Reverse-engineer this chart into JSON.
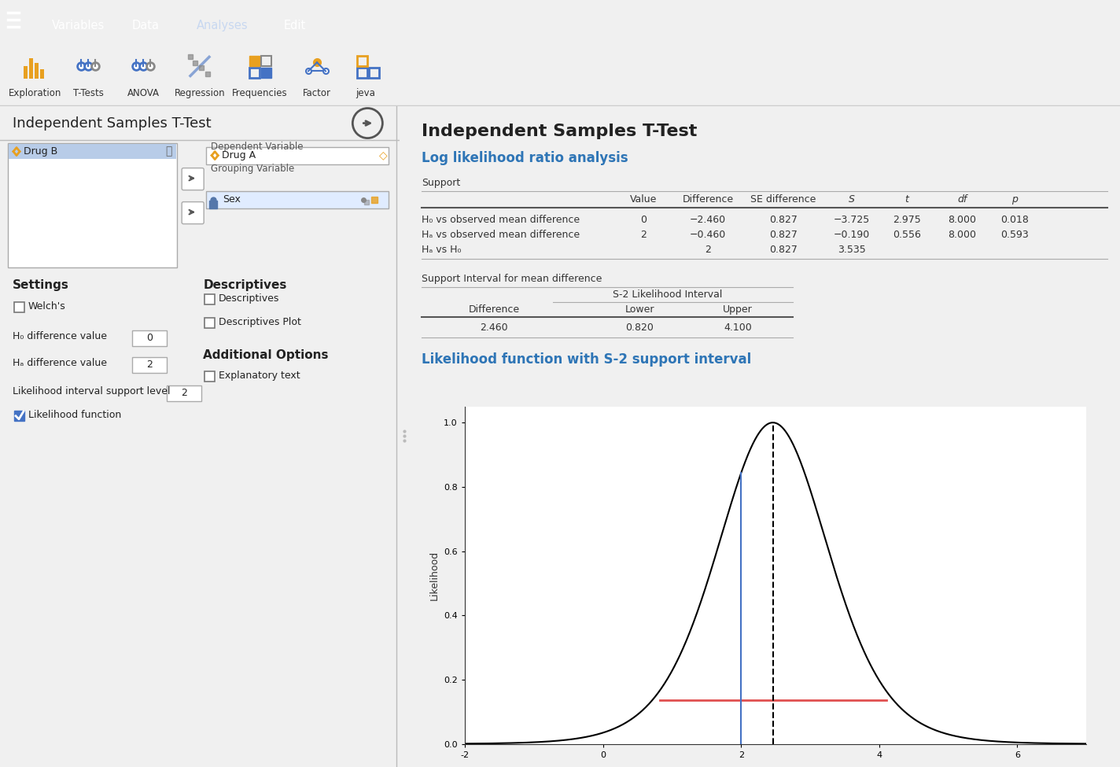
{
  "title_bar_color": "#2E5B9A",
  "nav_items": [
    "Variables",
    "Data",
    "Analyses",
    "Edit"
  ],
  "active_nav": "Analyses",
  "toolbar_items": [
    "Exploration",
    "T-Tests",
    "ANOVA",
    "Regression",
    "Frequencies",
    "Factor",
    "jeva"
  ],
  "dialog_title": "Independent Samples T-Test",
  "dependent_var": "Drug A",
  "grouping_var": "Sex",
  "variable_list": [
    "Drug B"
  ],
  "h0_value": "0",
  "ha_value": "2",
  "support_level": "2",
  "output_main_title": "Independent Samples T-Test",
  "output_section1": "Log likelihood ratio analysis",
  "output_section2": "Likelihood function with S-2 support interval",
  "table1_row_labels": [
    "H₀ vs observed mean difference",
    "Hₐ vs observed mean difference",
    "Hₐ vs H₀"
  ],
  "table1_col_headers": [
    "Value",
    "Difference",
    "SE difference",
    "S",
    "t",
    "df",
    "p"
  ],
  "table1_rows": [
    [
      "0",
      "−2.460",
      "0.827",
      "−3.725",
      "2.975",
      "8.000",
      "0.018"
    ],
    [
      "2",
      "−0.460",
      "0.827",
      "−0.190",
      "0.556",
      "8.000",
      "0.593"
    ],
    [
      "",
      "2",
      "0.827",
      "3.535",
      "",
      "",
      ""
    ]
  ],
  "table2_label": "Support Interval for mean difference",
  "table2_subheader": "S-2 Likelihood Interval",
  "table2_col_headers": [
    "Difference",
    "Lower",
    "Upper"
  ],
  "table2_data": [
    "2.460",
    "0.820",
    "4.100"
  ],
  "plot_mle": 2.46,
  "plot_ha": 2.0,
  "plot_lower": 0.82,
  "plot_upper": 4.1,
  "plot_df": 8,
  "plot_se": 0.827,
  "plot_ylabel": "Likelihood",
  "blue_color": "#4472C4",
  "red_color": "#E05050",
  "header_blue": "#2E75B6",
  "bg_light": "#F0F0F0",
  "dialog_bg": "#E0E0E0",
  "output_bg": "#FFFFFF"
}
